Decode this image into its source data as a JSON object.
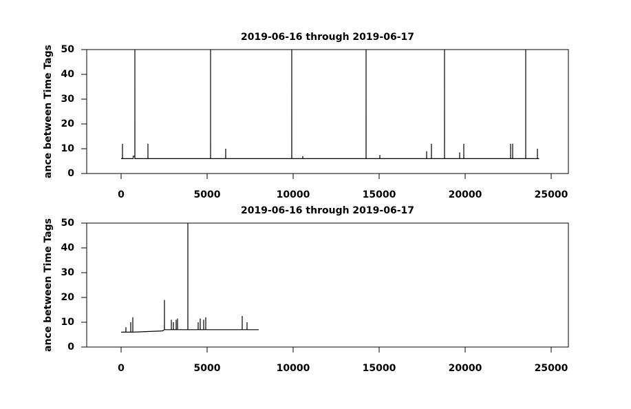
{
  "chart_data": [
    {
      "type": "line",
      "title": "2019-06-16 through 2019-06-17",
      "y_label": "ance between Time Tags",
      "color": "#000000",
      "x": [
        0,
        79,
        80,
        81,
        700,
        701,
        720,
        790,
        799,
        800,
        801,
        1559,
        1560,
        1561,
        5199,
        5200,
        5201,
        6079,
        6080,
        6081,
        9919,
        9920,
        9921,
        10559,
        10560,
        10561,
        14239,
        14240,
        14241,
        15039,
        15040,
        15041,
        17759,
        17760,
        17761,
        18039,
        18040,
        18041,
        18799,
        18800,
        18801,
        19679,
        19680,
        19681,
        19919,
        19920,
        19921,
        22639,
        22640,
        22641,
        22759,
        22760,
        22761,
        23519,
        23520,
        23521,
        24199,
        24200,
        24201,
        24300
      ],
      "values": [
        6,
        6,
        12,
        6,
        6,
        7,
        7,
        7,
        6,
        50,
        6,
        6,
        12,
        6,
        6,
        50,
        6,
        6,
        10,
        6,
        6,
        50,
        6,
        6,
        7,
        6,
        6,
        50,
        6,
        6,
        7.5,
        6,
        6,
        9,
        6,
        6,
        12,
        6,
        6,
        50,
        6,
        6,
        8.5,
        6,
        6,
        12,
        6,
        6,
        12,
        6,
        6,
        12,
        6,
        6,
        50,
        6,
        6,
        10,
        6,
        6
      ],
      "xlim": [
        -2000,
        26000
      ],
      "xticks": [
        0,
        5000,
        10000,
        15000,
        20000,
        25000
      ],
      "ylim": [
        0,
        50
      ],
      "yticks": [
        0,
        10,
        20,
        30,
        40,
        50
      ]
    },
    {
      "type": "line",
      "title": "2019-06-16 through 2019-06-17",
      "y_label": "ance between Time Tags",
      "color": "#000000",
      "x": [
        0,
        279,
        280,
        281,
        559,
        560,
        561,
        679,
        680,
        681,
        2400,
        2519,
        2520,
        2521,
        2919,
        2920,
        2921,
        3039,
        3040,
        3041,
        3199,
        3200,
        3201,
        3279,
        3280,
        3281,
        3879,
        3880,
        3881,
        4479,
        4480,
        4481,
        4599,
        4600,
        4601,
        4799,
        4800,
        4801,
        4919,
        4920,
        4921,
        7039,
        7040,
        7041,
        7319,
        7320,
        7321,
        8000
      ],
      "values": [
        6,
        6,
        8,
        6,
        6,
        10,
        6,
        6,
        12,
        6,
        6.5,
        7,
        19,
        7,
        7,
        11,
        7,
        7,
        10,
        7,
        7,
        11,
        7,
        7,
        11.5,
        7,
        7,
        50,
        7,
        7,
        10,
        7,
        7,
        11.5,
        7,
        7,
        11,
        7,
        7,
        12,
        7,
        7,
        12.5,
        7,
        7,
        10,
        7,
        7
      ],
      "xlim": [
        -2000,
        26000
      ],
      "xticks": [
        0,
        5000,
        10000,
        15000,
        20000,
        25000
      ],
      "ylim": [
        0,
        50
      ],
      "yticks": [
        0,
        10,
        20,
        30,
        40,
        50
      ]
    }
  ]
}
